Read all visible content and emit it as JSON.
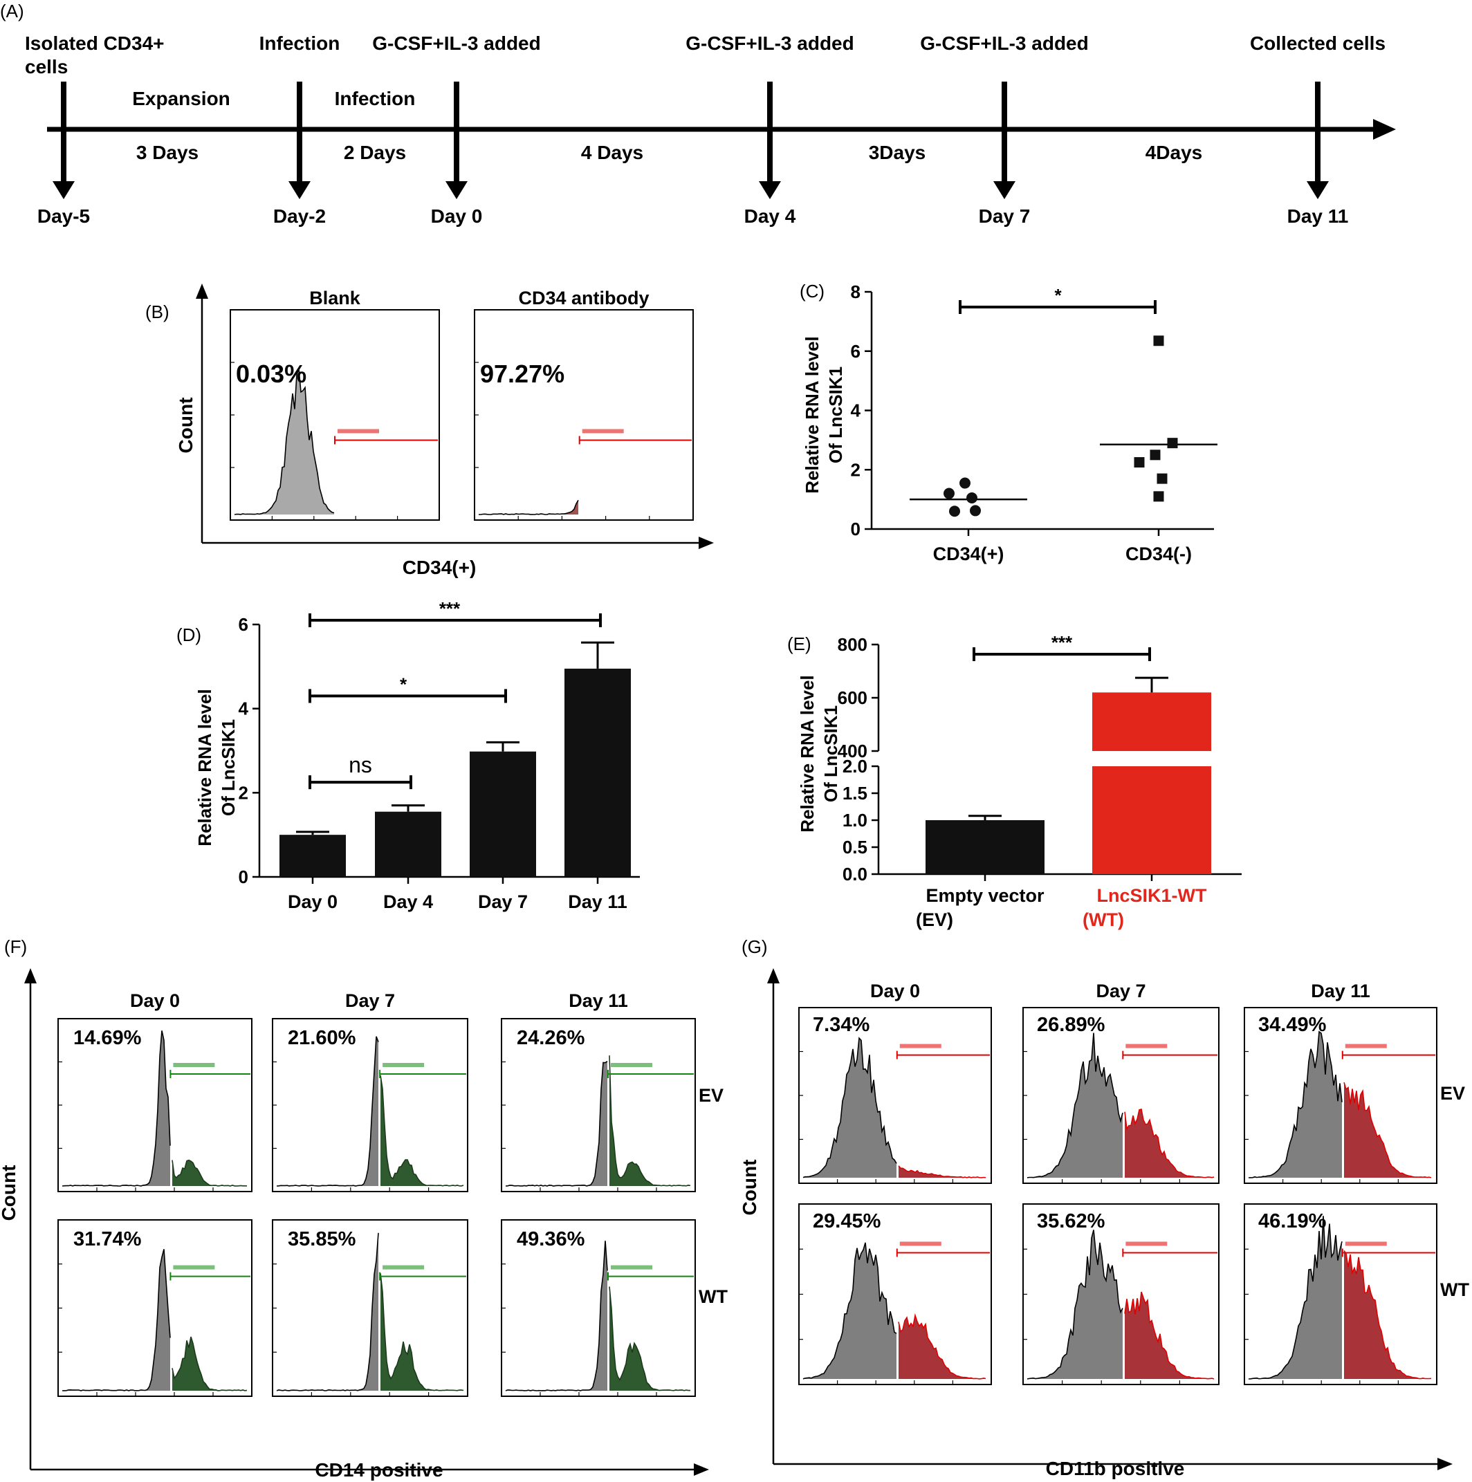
{
  "panel_labels": {
    "A": "(A)",
    "B": "(B)",
    "C": "(C)",
    "D": "(D)",
    "E": "(E)",
    "F": "(F)",
    "G": "(G)"
  },
  "timeline": {
    "events": [
      {
        "top": "Isolated CD34+",
        "top2": "cells",
        "bottom": "Day-5"
      },
      {
        "top": "Infection",
        "bottom": "Day-2"
      },
      {
        "top": "G-CSF+IL-3 added",
        "bottom": "Day 0"
      },
      {
        "top": "G-CSF+IL-3 added",
        "bottom": "Day 4"
      },
      {
        "top": "G-CSF+IL-3 added",
        "bottom": "Day 7"
      },
      {
        "top": "Collected cells",
        "bottom": "Day 11"
      }
    ],
    "phases": [
      "Expansion",
      "Infection"
    ],
    "durations": [
      "3 Days",
      "2 Days",
      "4 Days",
      "3Days",
      "4Days"
    ]
  },
  "panel_b": {
    "titles": [
      "Blank",
      "CD34 antibody"
    ],
    "percents": [
      "0.03%",
      "97.27%"
    ],
    "ylabel": "Count",
    "xlabel": "CD34(+)",
    "colors": {
      "blank": "#a9a9a9",
      "antibody": "#a0524f",
      "gate": "#e00000"
    }
  },
  "chart_data": [
    {
      "id": "C",
      "type": "scatter",
      "ylabel": "Relative RNA level",
      "ylabel2": "Of LncSIK1",
      "categories": [
        "CD34(+)",
        "CD34(-)"
      ],
      "points": [
        {
          "category": "CD34(+)",
          "values": [
            1.55,
            1.2,
            1.05,
            0.6,
            0.62
          ],
          "mean": 1.0,
          "marker": "circle"
        },
        {
          "category": "CD34(-)",
          "values": [
            6.35,
            2.9,
            2.5,
            2.25,
            1.7,
            1.1
          ],
          "mean": 2.85,
          "marker": "square"
        }
      ],
      "ylim": [
        0,
        8
      ],
      "yticks": [
        0,
        2,
        4,
        6,
        8
      ],
      "significance": [
        {
          "from": "CD34(+)",
          "to": "CD34(-)",
          "label": "*"
        }
      ]
    },
    {
      "id": "D",
      "type": "bar",
      "ylabel": "Relative RNA level",
      "ylabel2": "Of LncSIK1",
      "categories": [
        "Day 0",
        "Day 4",
        "Day 7",
        "Day 11"
      ],
      "values": [
        1.0,
        1.55,
        2.98,
        4.95
      ],
      "errors": [
        0.07,
        0.15,
        0.22,
        0.62
      ],
      "ylim": [
        0,
        6
      ],
      "yticks": [
        0,
        2,
        4,
        6
      ],
      "color": "#111111",
      "significance": [
        {
          "from": "Day 0",
          "to": "Day 4",
          "label": "ns",
          "y": 2.25
        },
        {
          "from": "Day 0",
          "to": "Day 7",
          "label": "*",
          "y": 4.3
        },
        {
          "from": "Day 0",
          "to": "Day 11",
          "label": "***",
          "y": 6.1
        }
      ]
    },
    {
      "id": "E",
      "type": "bar",
      "ylabel": "Relative RNA level",
      "ylabel2": "Of LncSIK1",
      "categories": [
        "Empty vector",
        "LncSIK1-WT"
      ],
      "category_sublabels": [
        "(EV)",
        "(WT)"
      ],
      "category_colors": [
        "#000000",
        "#e3261c"
      ],
      "values": [
        1.0,
        620
      ],
      "errors": [
        0.08,
        55
      ],
      "colors": [
        "#111111",
        "#e3261c"
      ],
      "axis_break": {
        "lower": [
          0,
          2.0
        ],
        "upper": [
          400,
          800
        ]
      },
      "yticks_lower": [
        "0.0",
        "0.5",
        "1.0",
        "1.5",
        "2.0"
      ],
      "yticks_upper": [
        "400",
        "600",
        "800"
      ],
      "significance": [
        {
          "from": "Empty vector",
          "to": "LncSIK1-WT",
          "label": "***"
        }
      ]
    }
  ],
  "panel_f": {
    "columns": [
      "Day 0",
      "Day 7",
      "Day 11"
    ],
    "rows": [
      "EV",
      "WT"
    ],
    "percents": [
      [
        "14.69%",
        "21.60%",
        "24.26%"
      ],
      [
        "31.74%",
        "35.85%",
        "49.36%"
      ]
    ],
    "ylabel": "Count",
    "xlabel": "CD14 positive",
    "colors": {
      "fill": "#7f7f7f",
      "gated": "#2f5a2f",
      "gate": "#118811"
    }
  },
  "panel_g": {
    "columns": [
      "Day 0",
      "Day 7",
      "Day 11"
    ],
    "rows": [
      "EV",
      "WT"
    ],
    "percents": [
      [
        "7.34%",
        "26.89%",
        "34.49%"
      ],
      [
        "29.45%",
        "35.62%",
        "46.19%"
      ]
    ],
    "ylabel": "Count",
    "xlabel": "CD11b positive",
    "colors": {
      "fill": "#7f7f7f",
      "gated": "#a8343a",
      "gate": "#e00000"
    }
  }
}
